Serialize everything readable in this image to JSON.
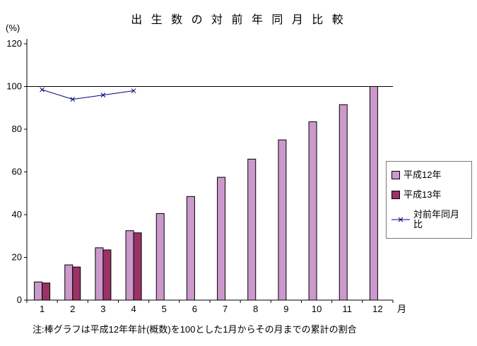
{
  "title": "出 生 数 の 対 前 年 同 月 比 較",
  "note": "注:棒グラフは平成12年年計(概数)を100とした1月からその月までの累計の割合",
  "chart_data": {
    "type": "bar",
    "title": "出生数の対前年同月比較",
    "ylabel": "(%)",
    "xlabel": "月",
    "ylim": [
      0,
      120
    ],
    "yticks": [
      0,
      20,
      40,
      60,
      80,
      100,
      120
    ],
    "ref_line": 100,
    "grid": false,
    "legend_position": "right",
    "categories": [
      "1",
      "2",
      "3",
      "4",
      "5",
      "6",
      "7",
      "8",
      "9",
      "10",
      "11",
      "12"
    ],
    "series": [
      {
        "name": "平成12年",
        "type": "bar",
        "color": "#cc99cc",
        "values": [
          8.5,
          16.5,
          24.5,
          32.5,
          40.5,
          48.5,
          57.5,
          66,
          75,
          83.5,
          91.5,
          100
        ]
      },
      {
        "name": "平成13年",
        "type": "bar",
        "color": "#993366",
        "values": [
          8,
          15.5,
          23.5,
          31.5,
          null,
          null,
          null,
          null,
          null,
          null,
          null,
          null
        ]
      },
      {
        "name": "対前年同月比",
        "type": "line",
        "color": "#000080",
        "marker": "x",
        "values": [
          98.5,
          94,
          96,
          98,
          null,
          null,
          null,
          null,
          null,
          null,
          null,
          null
        ]
      }
    ]
  }
}
